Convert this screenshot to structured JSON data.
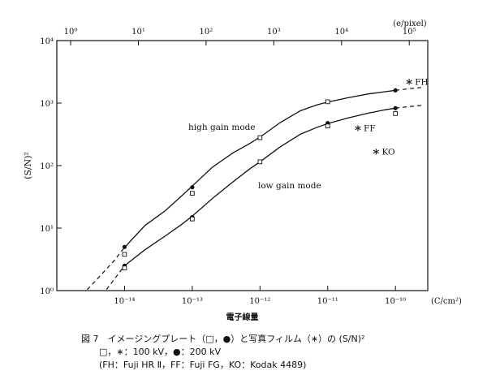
{
  "chart_data": {
    "type": "scatter",
    "xlabel": "電子線量",
    "x_unit": "(C/cm²)",
    "ylabel": "(S/N)²",
    "top_axis_unit": "(e/pixel)",
    "x_scale": "log",
    "y_scale": "log",
    "xlim": [
      1e-15,
      3e-10
    ],
    "ylim": [
      1,
      10000
    ],
    "grid": false,
    "x_ticks": [
      {
        "value": 1e-14,
        "label": "10⁻¹⁴"
      },
      {
        "value": 1e-13,
        "label": "10⁻¹³"
      },
      {
        "value": 1e-12,
        "label": "10⁻¹²"
      },
      {
        "value": 1e-11,
        "label": "10⁻¹¹"
      },
      {
        "value": 1e-10,
        "label": "10⁻¹⁰"
      }
    ],
    "y_ticks": [
      {
        "value": 1,
        "label": "10⁰"
      },
      {
        "value": 10,
        "label": "10¹"
      },
      {
        "value": 100,
        "label": "10²"
      },
      {
        "value": 1000,
        "label": "10³"
      },
      {
        "value": 10000,
        "label": "10⁴"
      }
    ],
    "top_ticks": [
      {
        "value": 1,
        "label": "10⁰"
      },
      {
        "value": 10,
        "label": "10¹"
      },
      {
        "value": 100,
        "label": "10²"
      },
      {
        "value": 1000,
        "label": "10³"
      },
      {
        "value": 10000,
        "label": "10⁴"
      },
      {
        "value": 100000,
        "label": "10⁵"
      }
    ],
    "top_axis_map": [
      [
        1,
        1.6e-15
      ],
      [
        100000,
        1.6e-10
      ]
    ],
    "series": [
      {
        "name": "high gain mode",
        "points": [
          {
            "x": 1e-14,
            "y": 5.0,
            "marker": "dot"
          },
          {
            "x": 1e-14,
            "y": 3.8,
            "marker": "square"
          },
          {
            "x": 1e-13,
            "y": 45,
            "marker": "dot"
          },
          {
            "x": 1e-13,
            "y": 36,
            "marker": "square"
          },
          {
            "x": 1e-12,
            "y": 280,
            "marker": "dot"
          },
          {
            "x": 1e-12,
            "y": 280,
            "marker": "square"
          },
          {
            "x": 1e-11,
            "y": 1050,
            "marker": "dot"
          },
          {
            "x": 1e-11,
            "y": 1050,
            "marker": "square"
          },
          {
            "x": 1e-10,
            "y": 1600,
            "marker": "dot"
          }
        ],
        "curve": [
          [
            2e-15,
            0.7
          ],
          [
            4e-15,
            1.55
          ],
          [
            7e-15,
            3.0
          ],
          [
            1e-14,
            4.9
          ],
          [
            2e-14,
            11
          ],
          [
            4e-14,
            19
          ],
          [
            7e-14,
            33
          ],
          [
            1e-13,
            47
          ],
          [
            2e-13,
            95
          ],
          [
            4e-13,
            160
          ],
          [
            7e-13,
            225
          ],
          [
            1e-12,
            285
          ],
          [
            2e-12,
            490
          ],
          [
            4e-12,
            760
          ],
          [
            7e-12,
            940
          ],
          [
            1e-11,
            1040
          ],
          [
            2e-11,
            1220
          ],
          [
            4e-11,
            1400
          ],
          [
            7e-11,
            1520
          ],
          [
            1e-10,
            1600
          ],
          [
            1.6e-10,
            1700
          ],
          [
            2.5e-10,
            1780
          ]
        ]
      },
      {
        "name": "low gain mode",
        "points": [
          {
            "x": 1e-14,
            "y": 2.5,
            "marker": "dot"
          },
          {
            "x": 1e-14,
            "y": 2.3,
            "marker": "square"
          },
          {
            "x": 1e-13,
            "y": 15,
            "marker": "dot"
          },
          {
            "x": 1e-13,
            "y": 14,
            "marker": "square"
          },
          {
            "x": 1e-12,
            "y": 115,
            "marker": "dot"
          },
          {
            "x": 1e-12,
            "y": 115,
            "marker": "square"
          },
          {
            "x": 1e-11,
            "y": 480,
            "marker": "dot"
          },
          {
            "x": 1e-11,
            "y": 430,
            "marker": "square"
          },
          {
            "x": 1e-10,
            "y": 830,
            "marker": "dot"
          },
          {
            "x": 1e-10,
            "y": 680,
            "marker": "square"
          }
        ],
        "curve": [
          [
            4e-15,
            0.68
          ],
          [
            7e-15,
            1.5
          ],
          [
            1e-14,
            2.5
          ],
          [
            2e-14,
            4.5
          ],
          [
            4e-14,
            7.5
          ],
          [
            7e-14,
            11.5
          ],
          [
            1e-13,
            15.5
          ],
          [
            2e-13,
            30
          ],
          [
            4e-13,
            55
          ],
          [
            7e-13,
            88
          ],
          [
            1e-12,
            115
          ],
          [
            2e-12,
            200
          ],
          [
            4e-12,
            320
          ],
          [
            7e-12,
            410
          ],
          [
            1e-11,
            470
          ],
          [
            2e-11,
            580
          ],
          [
            4e-11,
            690
          ],
          [
            7e-11,
            780
          ],
          [
            1e-10,
            830
          ],
          [
            1.6e-10,
            880
          ],
          [
            2.5e-10,
            920
          ]
        ]
      }
    ],
    "film_points": [
      {
        "label": "FH",
        "x": 1.6e-10,
        "y": 2200
      },
      {
        "label": "FF",
        "x": 2.8e-11,
        "y": 400
      },
      {
        "label": "KO",
        "x": 5.2e-11,
        "y": 170
      }
    ]
  },
  "caption": {
    "line1": "図 7　イメージングプレート（□，●）と写真フィルム（∗）の (S/N)²",
    "line2": "□，∗：100 kV，●：200 kV",
    "line3": "(FH：Fuji HR Ⅱ，FF：Fuji FG，KO：Kodak 4489)"
  },
  "colors": {
    "ink": "#111111",
    "background": "#ffffff"
  }
}
